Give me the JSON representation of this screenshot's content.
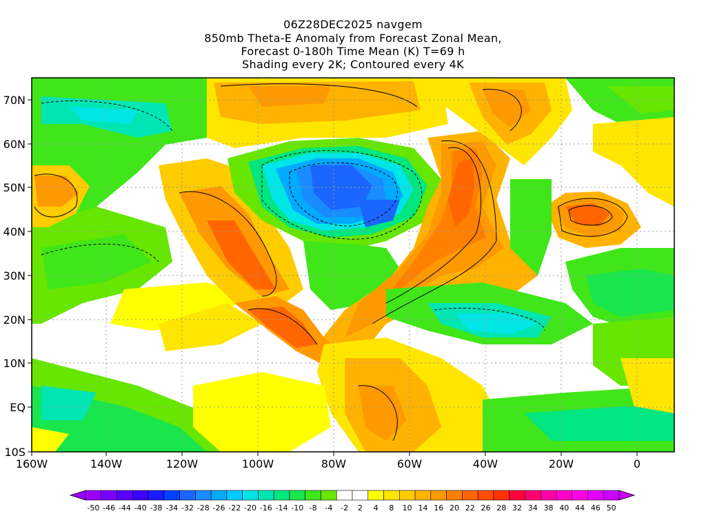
{
  "title": {
    "line1": "06Z28DEC2025 navgem",
    "line2": "850mb Theta-E Anomaly from Forecast Zonal Mean,",
    "line3": "Forecast 0-180h Time Mean (K) T=69 h",
    "line4": "Shading every 2K; Contoured every 4K"
  },
  "axes": {
    "lat_labels": [
      "70N",
      "60N",
      "50N",
      "40N",
      "30N",
      "20N",
      "10N",
      "EQ",
      "10S"
    ],
    "lon_labels": [
      "160W",
      "140W",
      "120W",
      "100W",
      "80W",
      "60W",
      "40W",
      "20W",
      "0"
    ]
  },
  "colorbar": {
    "labels": [
      "-50",
      "-46",
      "-44",
      "-40",
      "-38",
      "-34",
      "-32",
      "-28",
      "-26",
      "-22",
      "-20",
      "-16",
      "-14",
      "-10",
      "-8",
      "-4",
      "-2",
      "2",
      "4",
      "8",
      "10",
      "14",
      "16",
      "20",
      "22",
      "26",
      "28",
      "32",
      "34",
      "38",
      "40",
      "44",
      "46",
      "50"
    ],
    "colors": [
      "#9a00ff",
      "#7800ff",
      "#5a00ff",
      "#3c00ff",
      "#1a1aff",
      "#0040ff",
      "#1a66ff",
      "#1a8cff",
      "#00aaff",
      "#00ccff",
      "#00e5e5",
      "#00e6b3",
      "#00e680",
      "#19e64c",
      "#40e619",
      "#66e600",
      "#ffffff",
      "#ffffff",
      "#ffff00",
      "#ffe600",
      "#ffcc00",
      "#ffb300",
      "#ff9900",
      "#ff8000",
      "#ff6600",
      "#ff4c00",
      "#ff3300",
      "#ff0040",
      "#ff0073",
      "#ff00a6",
      "#ff00cc",
      "#ff00e6",
      "#e600ff",
      "#cc00ff"
    ]
  }
}
